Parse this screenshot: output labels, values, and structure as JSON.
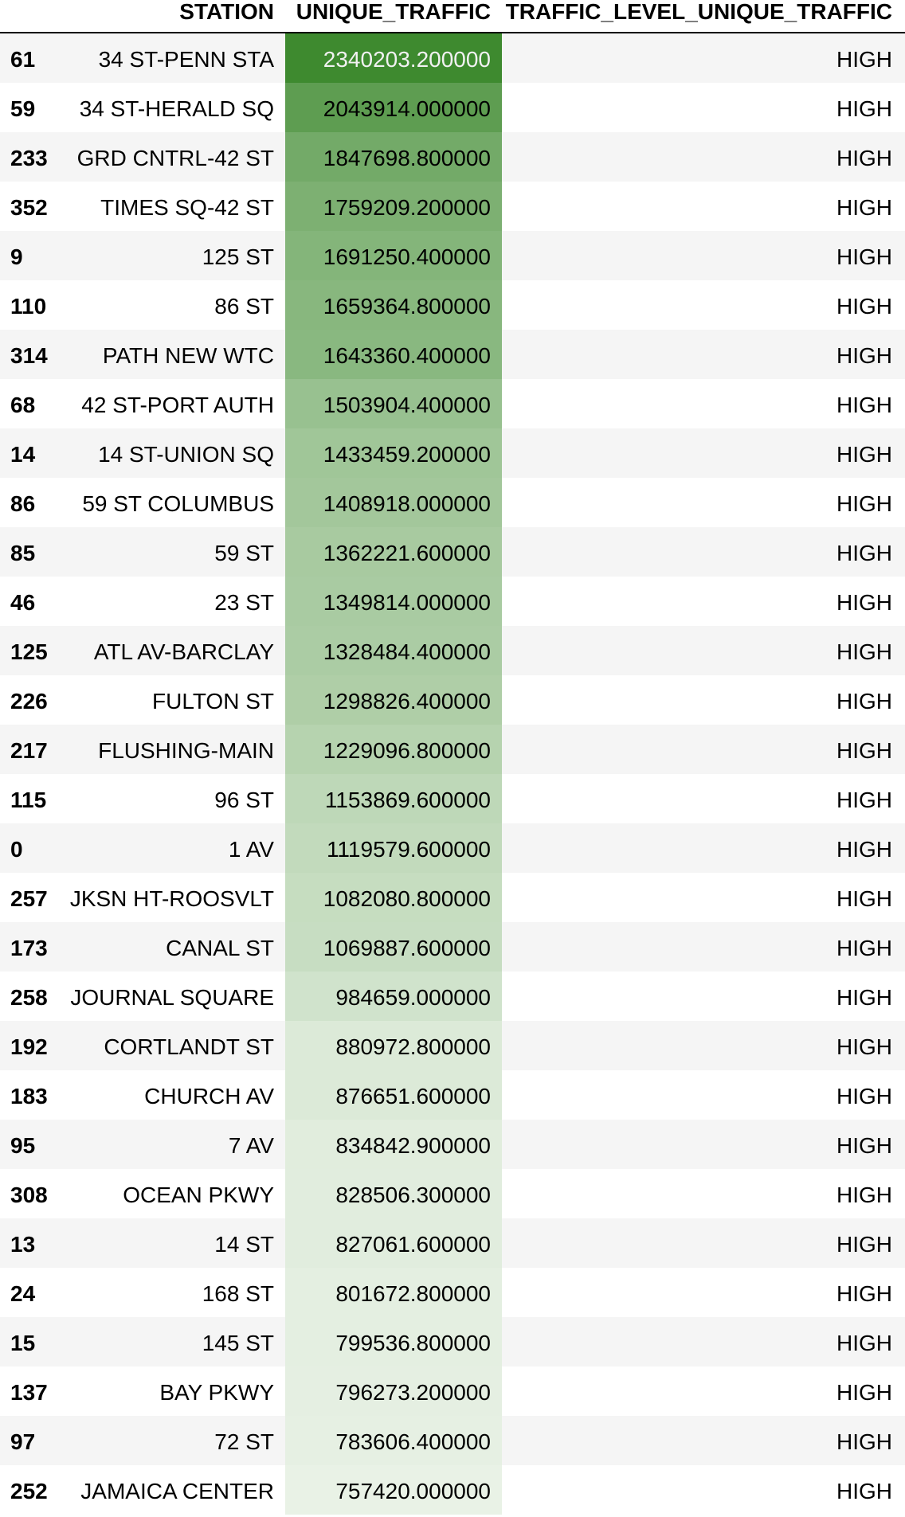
{
  "table": {
    "columns": {
      "index": "",
      "station": "STATION",
      "unique_traffic": "UNIQUE_TRAFFIC",
      "traffic_level": "TRAFFIC_LEVEL_UNIQUE_TRAFFIC"
    },
    "gradient": {
      "high_color": "#3e8a2f",
      "low_color": "#e9f2e6",
      "min_value": 757420.0,
      "max_value": 2340203.2
    },
    "rows": [
      {
        "index": "61",
        "station": "34 ST-PENN STA",
        "unique_traffic": "2340203.200000",
        "value": 2340203.2,
        "traffic_level": "HIGH"
      },
      {
        "index": "59",
        "station": "34 ST-HERALD SQ",
        "unique_traffic": "2043914.000000",
        "value": 2043914.0,
        "traffic_level": "HIGH"
      },
      {
        "index": "233",
        "station": "GRD CNTRL-42 ST",
        "unique_traffic": "1847698.800000",
        "value": 1847698.8,
        "traffic_level": "HIGH"
      },
      {
        "index": "352",
        "station": "TIMES SQ-42 ST",
        "unique_traffic": "1759209.200000",
        "value": 1759209.2,
        "traffic_level": "HIGH"
      },
      {
        "index": "9",
        "station": "125 ST",
        "unique_traffic": "1691250.400000",
        "value": 1691250.4,
        "traffic_level": "HIGH"
      },
      {
        "index": "110",
        "station": "86 ST",
        "unique_traffic": "1659364.800000",
        "value": 1659364.8,
        "traffic_level": "HIGH"
      },
      {
        "index": "314",
        "station": "PATH NEW WTC",
        "unique_traffic": "1643360.400000",
        "value": 1643360.4,
        "traffic_level": "HIGH"
      },
      {
        "index": "68",
        "station": "42 ST-PORT AUTH",
        "unique_traffic": "1503904.400000",
        "value": 1503904.4,
        "traffic_level": "HIGH"
      },
      {
        "index": "14",
        "station": "14 ST-UNION SQ",
        "unique_traffic": "1433459.200000",
        "value": 1433459.2,
        "traffic_level": "HIGH"
      },
      {
        "index": "86",
        "station": "59 ST COLUMBUS",
        "unique_traffic": "1408918.000000",
        "value": 1408918.0,
        "traffic_level": "HIGH"
      },
      {
        "index": "85",
        "station": "59 ST",
        "unique_traffic": "1362221.600000",
        "value": 1362221.6,
        "traffic_level": "HIGH"
      },
      {
        "index": "46",
        "station": "23 ST",
        "unique_traffic": "1349814.000000",
        "value": 1349814.0,
        "traffic_level": "HIGH"
      },
      {
        "index": "125",
        "station": "ATL AV-BARCLAY",
        "unique_traffic": "1328484.400000",
        "value": 1328484.4,
        "traffic_level": "HIGH"
      },
      {
        "index": "226",
        "station": "FULTON ST",
        "unique_traffic": "1298826.400000",
        "value": 1298826.4,
        "traffic_level": "HIGH"
      },
      {
        "index": "217",
        "station": "FLUSHING-MAIN",
        "unique_traffic": "1229096.800000",
        "value": 1229096.8,
        "traffic_level": "HIGH"
      },
      {
        "index": "115",
        "station": "96 ST",
        "unique_traffic": "1153869.600000",
        "value": 1153869.6,
        "traffic_level": "HIGH"
      },
      {
        "index": "0",
        "station": "1 AV",
        "unique_traffic": "1119579.600000",
        "value": 1119579.6,
        "traffic_level": "HIGH"
      },
      {
        "index": "257",
        "station": "JKSN HT-ROOSVLT",
        "unique_traffic": "1082080.800000",
        "value": 1082080.8,
        "traffic_level": "HIGH"
      },
      {
        "index": "173",
        "station": "CANAL ST",
        "unique_traffic": "1069887.600000",
        "value": 1069887.6,
        "traffic_level": "HIGH"
      },
      {
        "index": "258",
        "station": "JOURNAL SQUARE",
        "unique_traffic": "984659.000000",
        "value": 984659.0,
        "traffic_level": "HIGH"
      },
      {
        "index": "192",
        "station": "CORTLANDT ST",
        "unique_traffic": "880972.800000",
        "value": 880972.8,
        "traffic_level": "HIGH"
      },
      {
        "index": "183",
        "station": "CHURCH AV",
        "unique_traffic": "876651.600000",
        "value": 876651.6,
        "traffic_level": "HIGH"
      },
      {
        "index": "95",
        "station": "7 AV",
        "unique_traffic": "834842.900000",
        "value": 834842.9,
        "traffic_level": "HIGH"
      },
      {
        "index": "308",
        "station": "OCEAN PKWY",
        "unique_traffic": "828506.300000",
        "value": 828506.3,
        "traffic_level": "HIGH"
      },
      {
        "index": "13",
        "station": "14 ST",
        "unique_traffic": "827061.600000",
        "value": 827061.6,
        "traffic_level": "HIGH"
      },
      {
        "index": "24",
        "station": "168 ST",
        "unique_traffic": "801672.800000",
        "value": 801672.8,
        "traffic_level": "HIGH"
      },
      {
        "index": "15",
        "station": "145 ST",
        "unique_traffic": "799536.800000",
        "value": 799536.8,
        "traffic_level": "HIGH"
      },
      {
        "index": "137",
        "station": "BAY PKWY",
        "unique_traffic": "796273.200000",
        "value": 796273.2,
        "traffic_level": "HIGH"
      },
      {
        "index": "97",
        "station": "72 ST",
        "unique_traffic": "783606.400000",
        "value": 783606.4,
        "traffic_level": "HIGH"
      },
      {
        "index": "252",
        "station": "JAMAICA CENTER",
        "unique_traffic": "757420.000000",
        "value": 757420.0,
        "traffic_level": "HIGH"
      }
    ]
  }
}
